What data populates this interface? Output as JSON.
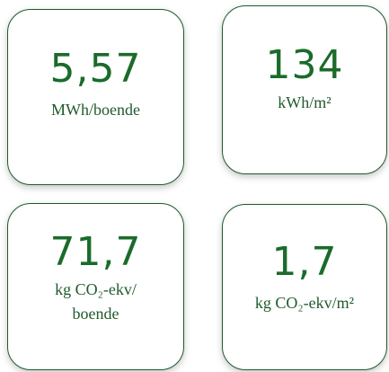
{
  "cards": [
    {
      "value": "5,57",
      "unit": "MWh/boende"
    },
    {
      "value": "134",
      "unit": "kWh/m²"
    },
    {
      "value": "71,7",
      "unit": "kg CO₂-ekv/ boende"
    },
    {
      "value": "1,7",
      "unit": "kg CO₂-ekv/m²"
    }
  ]
}
